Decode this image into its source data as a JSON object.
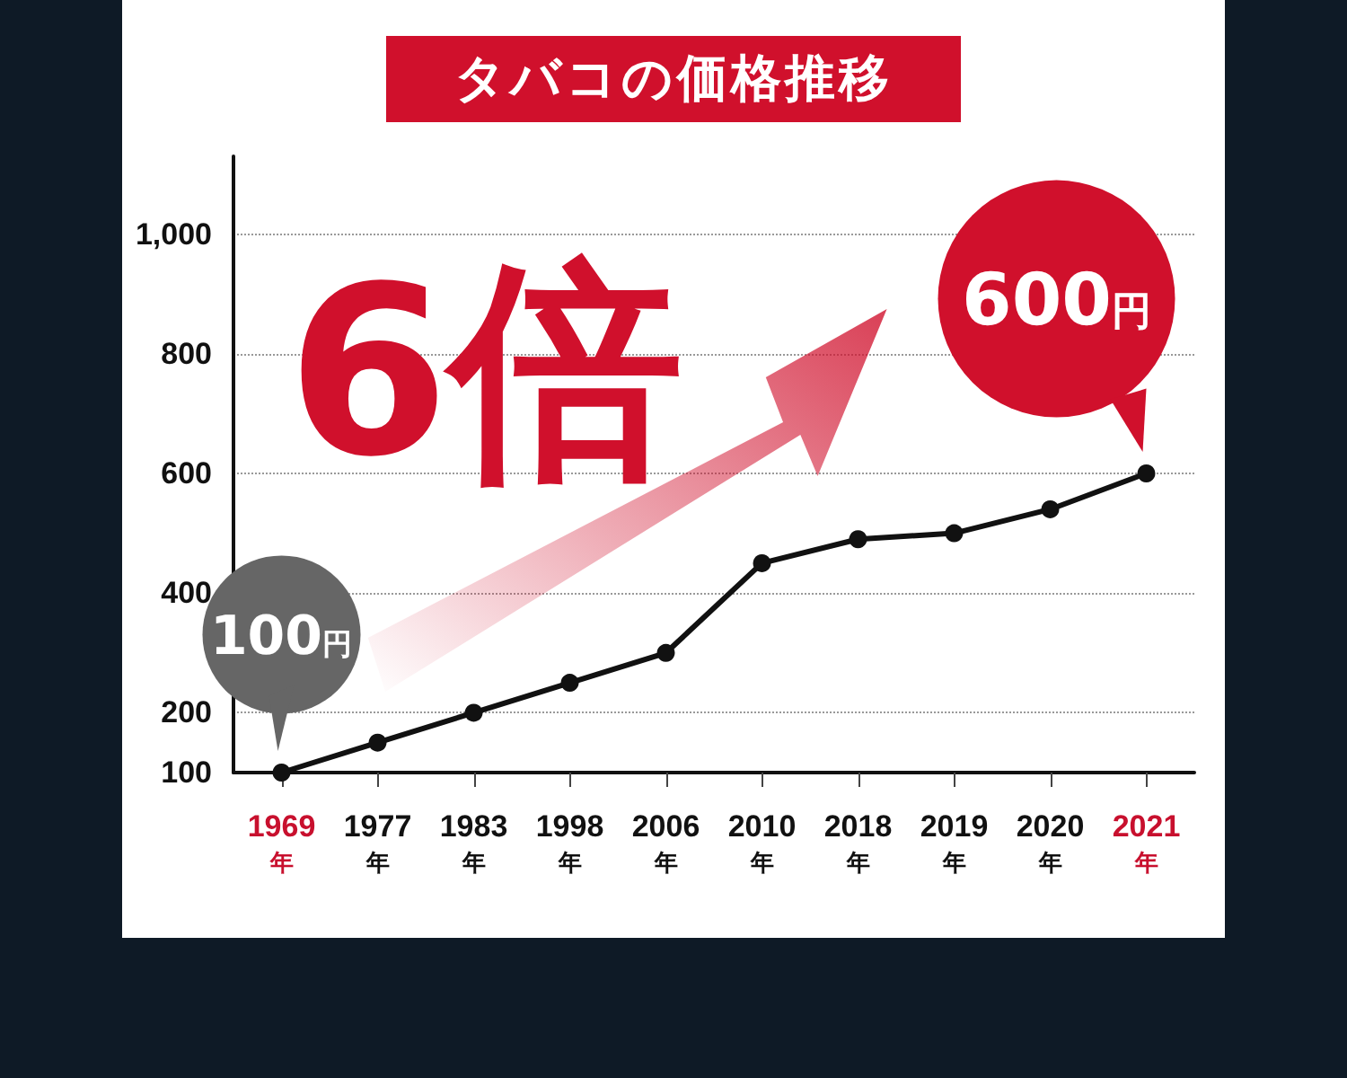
{
  "chart_data": {
    "type": "line",
    "title": "タバコの価格推移",
    "categories": [
      "1969年",
      "1977年",
      "1983年",
      "1998年",
      "2006年",
      "2010年",
      "2018年",
      "2019年",
      "2020年",
      "2021年"
    ],
    "series": [
      {
        "color": "#111111",
        "values": [
          100,
          150,
          200,
          250,
          300,
          450,
          490,
          500,
          540,
          600
        ]
      }
    ],
    "ylim": [
      100,
      1130
    ],
    "yticks": [
      100,
      200,
      400,
      600,
      800,
      {
        "value": 1000,
        "label": "1,000"
      }
    ],
    "grid": "y",
    "marker": "circle",
    "line_style": "solid",
    "annotations": [
      "6倍",
      {
        "text": "100円",
        "x": "1969年",
        "y": 100
      },
      {
        "text": "600円",
        "x": "2021年",
        "y": 600
      }
    ]
  }
}
